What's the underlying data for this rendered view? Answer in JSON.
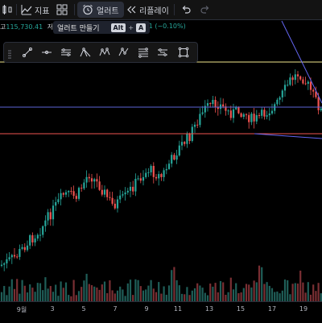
{
  "toolbar": {
    "indicators_label": "지표",
    "alert_label": "얼러트",
    "replay_label": "리플레이"
  },
  "tooltip": {
    "text": "얼러트 만들기",
    "key1": "Alt",
    "plus": "+",
    "key2": "A"
  },
  "ohlc": {
    "high_label": "고",
    "high_value": "115,730.41",
    "low_label": "저",
    "change_text": "6.51 (−0.10%)"
  },
  "drawing_tools": [
    "trend-line",
    "horizontal-ray",
    "parallel-channel",
    "pitchfork",
    "zigzag-pattern",
    "abcd-pattern",
    "fib-retracement",
    "position-tool",
    "rectangle"
  ],
  "xaxis": {
    "labels": [
      "9월",
      "3",
      "5",
      "7",
      "9",
      "11",
      "13",
      "15",
      "17",
      "19"
    ]
  },
  "chart_data": {
    "type": "candlestick",
    "up_color": "#26a69a",
    "down_color": "#ef5350",
    "volume": true
  },
  "colors": {
    "horizontal_line_1": "#f0e68c",
    "horizontal_line_2": "#5b63d6",
    "horizontal_line_3": "#ef5350",
    "trend_line": "#6366f1"
  }
}
